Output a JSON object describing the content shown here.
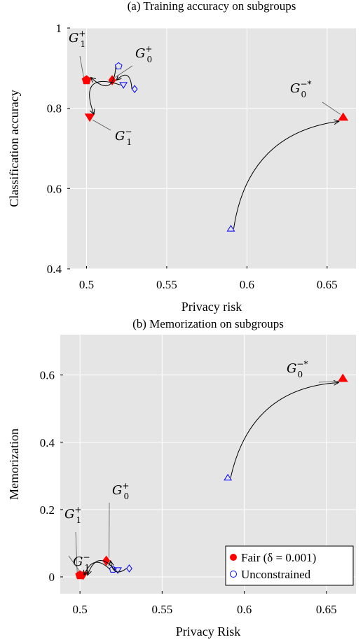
{
  "chart_data": [
    {
      "type": "scatter",
      "title": "(a) Training accuracy on subgroups",
      "xlabel": "Privacy risk",
      "ylabel": "Classification accuracy",
      "xlim": [
        0.488,
        0.668
      ],
      "ylim": [
        0.4,
        1.0
      ],
      "xticks": [
        "0.5",
        "0.55",
        "0.6",
        "0.65"
      ],
      "xtick_values": [
        0.5,
        0.55,
        0.6,
        0.65
      ],
      "yticks": [
        "0.4",
        "0.6",
        "0.8",
        "1"
      ],
      "ytick_values": [
        0.4,
        0.6,
        0.8,
        1.0
      ],
      "grid": true,
      "series": [
        {
          "name": "Fair (δ = 0.001)",
          "points": [
            {
              "group": "G1+",
              "x": 0.5,
              "y": 0.87
            },
            {
              "group": "G0+",
              "x": 0.516,
              "y": 0.87
            },
            {
              "group": "G1-",
              "x": 0.502,
              "y": 0.778
            },
            {
              "group": "G0-*",
              "x": 0.66,
              "y": 0.778
            }
          ]
        },
        {
          "name": "Unconstrained",
          "points": [
            {
              "group": "G1+",
              "x": 0.52,
              "y": 0.905
            },
            {
              "group": "G0+",
              "x": 0.53,
              "y": 0.848
            },
            {
              "group": "G1-",
              "x": 0.523,
              "y": 0.858
            },
            {
              "group": "G0-*",
              "x": 0.59,
              "y": 0.5
            }
          ]
        }
      ],
      "annotations": [
        {
          "base": "G",
          "sub": "1",
          "sup": "+"
        },
        {
          "base": "G",
          "sub": "0",
          "sup": "+"
        },
        {
          "base": "G",
          "sub": "1",
          "sup": "−"
        },
        {
          "base": "G",
          "sub": "0",
          "sup": "−*"
        }
      ]
    },
    {
      "type": "scatter",
      "title": "(b) Memorization on subgroups",
      "xlabel": "Privacy Risk",
      "ylabel": "Memorization",
      "xlim": [
        0.488,
        0.668
      ],
      "ylim": [
        -0.05,
        0.72
      ],
      "xticks": [
        "0.5",
        "0.55",
        "0.6",
        "0.65"
      ],
      "xtick_values": [
        0.5,
        0.55,
        0.6,
        0.65
      ],
      "yticks": [
        "0",
        "0.2",
        "0.4",
        "0.6"
      ],
      "ytick_values": [
        0.0,
        0.2,
        0.4,
        0.6
      ],
      "grid": true,
      "legend_position": "bottom-right",
      "legend": [
        "Fair (δ = 0.001)",
        "Unconstrained"
      ],
      "series": [
        {
          "name": "Fair (δ = 0.001)",
          "points": [
            {
              "group": "G1+",
              "x": 0.5,
              "y": 0.005
            },
            {
              "group": "G0+",
              "x": 0.516,
              "y": 0.048
            },
            {
              "group": "G1-",
              "x": 0.502,
              "y": 0.005
            },
            {
              "group": "G0-*",
              "x": 0.66,
              "y": 0.59
            }
          ]
        },
        {
          "name": "Unconstrained",
          "points": [
            {
              "group": "G1+",
              "x": 0.52,
              "y": 0.022
            },
            {
              "group": "G0+",
              "x": 0.53,
              "y": 0.025
            },
            {
              "group": "G1-",
              "x": 0.523,
              "y": 0.02
            },
            {
              "group": "G0-*",
              "x": 0.59,
              "y": 0.295
            }
          ]
        }
      ],
      "annotations": [
        {
          "base": "G",
          "sub": "1",
          "sup": "+"
        },
        {
          "base": "G",
          "sub": "0",
          "sup": "+"
        },
        {
          "base": "G",
          "sub": "1",
          "sup": "−"
        },
        {
          "base": "G",
          "sub": "0",
          "sup": "−*"
        }
      ]
    }
  ],
  "colors": {
    "fair": "#ff0000",
    "unconstrained": "#0000ff",
    "panel": "#e5e5e5",
    "grid": "#ffffff"
  }
}
